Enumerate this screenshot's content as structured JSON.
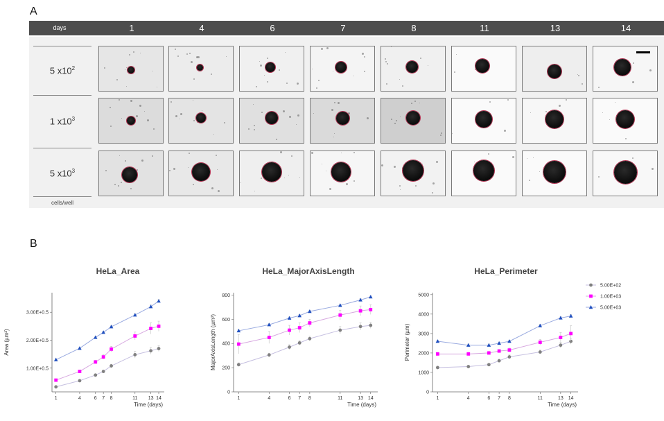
{
  "panel_a": {
    "letter": "A",
    "header_label": "days",
    "days": [
      "1",
      "4",
      "6",
      "7",
      "8",
      "11",
      "13",
      "14"
    ],
    "rows": [
      {
        "base": "5 x10",
        "exp": "2"
      },
      {
        "base": "1 x10",
        "exp": "3"
      },
      {
        "base": "5 x10",
        "exp": "3"
      }
    ],
    "footer_label": "cells/well"
  },
  "panel_b": {
    "letter": "B"
  },
  "colors": {
    "s1": "#808080",
    "s2": "#ff00ff",
    "s3": "#1f4fbf",
    "l1": "#c5bfe0",
    "l2": "#d7a8e0",
    "l3": "#99aae0"
  },
  "chart_data": [
    {
      "type": "line",
      "title": "HeLa_Area",
      "xlabel": "Time (days)",
      "ylabel": "Area (µm²)",
      "x": [
        1,
        4,
        6,
        7,
        8,
        11,
        13,
        14
      ],
      "xlim": [
        0.5,
        14.7
      ],
      "ylim": [
        15000,
        370000
      ],
      "yticks": [
        100000,
        200000,
        300000
      ],
      "ytick_labels": [
        "1.00E+0.5",
        "2.00E+0.5",
        "3.00E+0.5"
      ],
      "series": [
        {
          "name": "5.00E+02",
          "values": [
            33000,
            55000,
            75000,
            88000,
            108000,
            148000,
            162000,
            170000
          ],
          "err": [
            3000,
            3000,
            4000,
            5000,
            6000,
            12000,
            12000,
            10000
          ]
        },
        {
          "name": "1.00E+03",
          "values": [
            57000,
            88000,
            122000,
            140000,
            168000,
            215000,
            242000,
            250000
          ],
          "err": [
            4000,
            5000,
            6000,
            8000,
            10000,
            14000,
            20000,
            18000
          ]
        },
        {
          "name": "5.00E+03",
          "values": [
            130000,
            171000,
            210000,
            228000,
            248000,
            290000,
            320000,
            340000
          ],
          "err": [
            3000,
            3000,
            4000,
            4000,
            5000,
            5000,
            6000,
            6000
          ]
        }
      ]
    },
    {
      "type": "line",
      "title": "HeLa_MajorAxisLength",
      "xlabel": "Time (days)",
      "ylabel": "MajorAxisLength (µm²)",
      "x": [
        1,
        4,
        6,
        7,
        8,
        11,
        13,
        14
      ],
      "xlim": [
        0.5,
        14.7
      ],
      "ylim": [
        0,
        820
      ],
      "yticks": [
        0,
        200,
        400,
        600,
        800
      ],
      "ytick_labels": [
        "0",
        "200",
        "400",
        "600",
        "800"
      ],
      "series": [
        {
          "name": "5.00E+02",
          "values": [
            225,
            305,
            370,
            405,
            440,
            510,
            540,
            550
          ],
          "err": [
            15,
            15,
            20,
            20,
            20,
            30,
            30,
            25
          ]
        },
        {
          "name": "1.00E+03",
          "values": [
            395,
            450,
            510,
            530,
            570,
            635,
            670,
            680
          ],
          "err": [
            80,
            50,
            40,
            40,
            30,
            40,
            40,
            40
          ]
        },
        {
          "name": "5.00E+03",
          "values": [
            505,
            555,
            610,
            630,
            665,
            715,
            760,
            785
          ],
          "err": [
            10,
            10,
            10,
            10,
            10,
            10,
            10,
            10
          ]
        }
      ]
    },
    {
      "type": "line",
      "title": "HeLa_Perimeter",
      "xlabel": "Time (days)",
      "ylabel": "Perimeter (µm)",
      "x": [
        1,
        4,
        6,
        7,
        8,
        11,
        13,
        14
      ],
      "xlim": [
        0.5,
        14.7
      ],
      "ylim": [
        0,
        5100
      ],
      "yticks": [
        0,
        1000,
        2000,
        3000,
        4000,
        5000
      ],
      "ytick_labels": [
        "0",
        "1000",
        "2000",
        "3000",
        "4000",
        "5000"
      ],
      "series": [
        {
          "name": "5.00E+02",
          "values": [
            1250,
            1300,
            1400,
            1600,
            1800,
            2050,
            2400,
            2600
          ],
          "err": [
            60,
            60,
            60,
            80,
            100,
            100,
            150,
            150
          ]
        },
        {
          "name": "1.00E+03",
          "values": [
            1950,
            1950,
            2000,
            2100,
            2150,
            2550,
            2800,
            3000
          ],
          "err": [
            80,
            80,
            80,
            80,
            100,
            150,
            250,
            400
          ]
        },
        {
          "name": "5.00E+03",
          "values": [
            2600,
            2400,
            2400,
            2500,
            2600,
            3400,
            3800,
            3900
          ],
          "err": [
            60,
            60,
            60,
            60,
            60,
            80,
            80,
            80
          ]
        }
      ],
      "legend": [
        "5.00E+02",
        "1.00E+03",
        "5.00E+03"
      ]
    }
  ]
}
